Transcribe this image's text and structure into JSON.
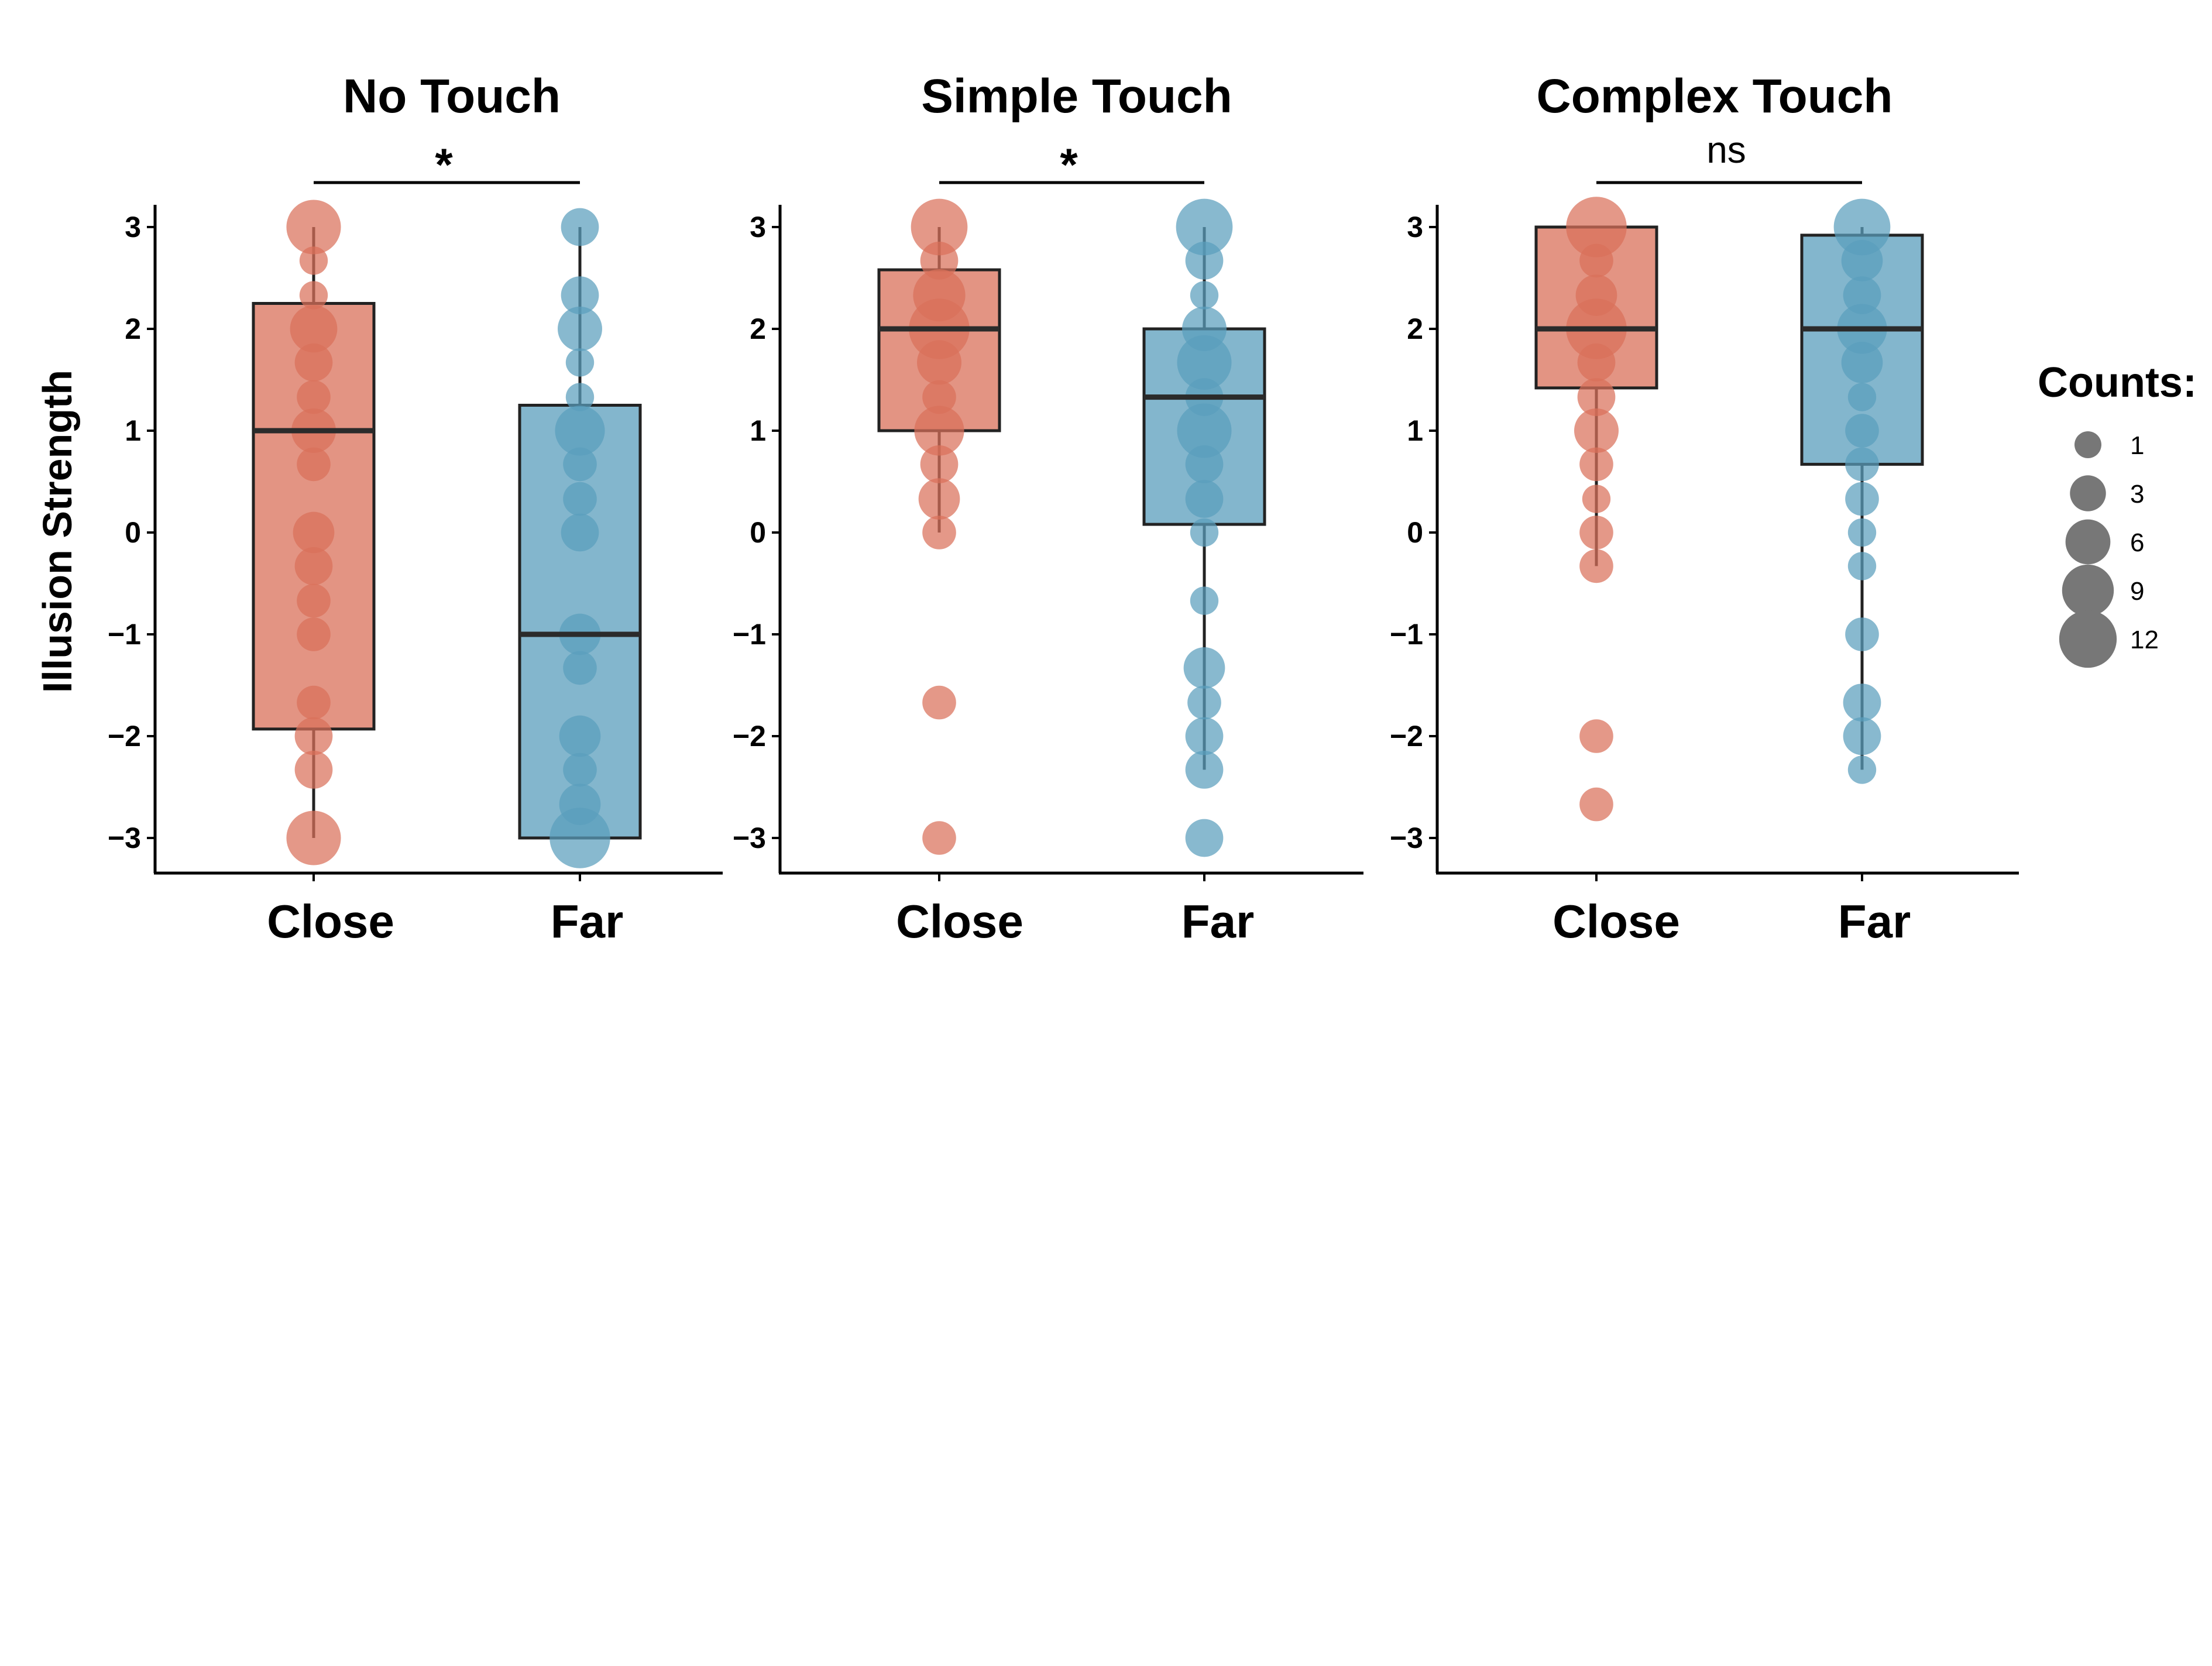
{
  "chart_data": {
    "type": "box",
    "ylabel": "Illusion Strength",
    "ylim": [
      -3,
      3
    ],
    "yticks": [
      "3",
      "2",
      "1",
      "0",
      "−1",
      "−2",
      "−3"
    ],
    "ytick_values": [
      3,
      2,
      1,
      0,
      -1,
      -2,
      -3
    ],
    "categories": [
      "Close",
      "Far"
    ],
    "colors": {
      "Close": "#D9705A",
      "Far": "#5A9EBC",
      "median": "#2b2b2b",
      "legend": "#777777"
    },
    "legend": {
      "title": "Counts:",
      "entries": [
        {
          "label": "1",
          "count": 1
        },
        {
          "label": "3",
          "count": 3
        },
        {
          "label": "6",
          "count": 6
        },
        {
          "label": "9",
          "count": 9
        },
        {
          "label": "12",
          "count": 12
        }
      ]
    },
    "panels": [
      {
        "title": "No Touch",
        "significance": "*",
        "groups": [
          {
            "name": "Close",
            "box": {
              "whisker_low": -3,
              "q1": -1.93,
              "median": 1,
              "q3": 2.25,
              "whisker_high": 3
            },
            "points": [
              {
                "y": 3,
                "count": 9
              },
              {
                "y": 2.67,
                "count": 1
              },
              {
                "y": 2.33,
                "count": 1
              },
              {
                "y": 2,
                "count": 6
              },
              {
                "y": 1.67,
                "count": 3
              },
              {
                "y": 1.33,
                "count": 2
              },
              {
                "y": 1,
                "count": 5
              },
              {
                "y": 0.67,
                "count": 2
              },
              {
                "y": 0,
                "count": 4
              },
              {
                "y": -0.33,
                "count": 3
              },
              {
                "y": -0.67,
                "count": 2
              },
              {
                "y": -1,
                "count": 2
              },
              {
                "y": -1.67,
                "count": 2
              },
              {
                "y": -2,
                "count": 3
              },
              {
                "y": -2.33,
                "count": 3
              },
              {
                "y": -3,
                "count": 9
              }
            ]
          },
          {
            "name": "Far",
            "box": {
              "whisker_low": -3,
              "q1": -3,
              "median": -1,
              "q3": 1.25,
              "whisker_high": 3
            },
            "points": [
              {
                "y": 3,
                "count": 3
              },
              {
                "y": 2.33,
                "count": 3
              },
              {
                "y": 2,
                "count": 5
              },
              {
                "y": 1.67,
                "count": 1
              },
              {
                "y": 1.33,
                "count": 1
              },
              {
                "y": 1,
                "count": 7
              },
              {
                "y": 0.67,
                "count": 2
              },
              {
                "y": 0.33,
                "count": 2
              },
              {
                "y": 0,
                "count": 3
              },
              {
                "y": -1,
                "count": 4
              },
              {
                "y": -1.33,
                "count": 2
              },
              {
                "y": -2,
                "count": 4
              },
              {
                "y": -2.33,
                "count": 2
              },
              {
                "y": -2.67,
                "count": 4
              },
              {
                "y": -3,
                "count": 12
              }
            ]
          }
        ]
      },
      {
        "title": "Simple Touch",
        "significance": "*",
        "groups": [
          {
            "name": "Close",
            "box": {
              "whisker_low": 0,
              "q1": 1,
              "median": 2,
              "q3": 2.58,
              "whisker_high": 3
            },
            "points": [
              {
                "y": 3,
                "count": 10
              },
              {
                "y": 2.67,
                "count": 3
              },
              {
                "y": 2.33,
                "count": 8
              },
              {
                "y": 2,
                "count": 12
              },
              {
                "y": 1.67,
                "count": 5
              },
              {
                "y": 1.33,
                "count": 2
              },
              {
                "y": 1,
                "count": 7
              },
              {
                "y": 0.67,
                "count": 3
              },
              {
                "y": 0.33,
                "count": 4
              },
              {
                "y": 0,
                "count": 2
              },
              {
                "y": -1.67,
                "count": 2
              },
              {
                "y": -3,
                "count": 2
              }
            ]
          },
          {
            "name": "Far",
            "box": {
              "whisker_low": -2.33,
              "q1": 0.08,
              "median": 1.33,
              "q3": 2,
              "whisker_high": 3
            },
            "points": [
              {
                "y": 3,
                "count": 10
              },
              {
                "y": 2.67,
                "count": 3
              },
              {
                "y": 2.33,
                "count": 1
              },
              {
                "y": 2,
                "count": 5
              },
              {
                "y": 1.67,
                "count": 9
              },
              {
                "y": 1.33,
                "count": 3
              },
              {
                "y": 1,
                "count": 9
              },
              {
                "y": 0.67,
                "count": 3
              },
              {
                "y": 0.33,
                "count": 3
              },
              {
                "y": 0,
                "count": 1
              },
              {
                "y": -0.67,
                "count": 1
              },
              {
                "y": -1.33,
                "count": 4
              },
              {
                "y": -1.67,
                "count": 2
              },
              {
                "y": -2,
                "count": 3
              },
              {
                "y": -2.33,
                "count": 3
              },
              {
                "y": -3,
                "count": 3
              }
            ]
          }
        ]
      },
      {
        "title": "Complex Touch",
        "significance": "ns",
        "groups": [
          {
            "name": "Close",
            "box": {
              "whisker_low": -0.33,
              "q1": 1.42,
              "median": 2,
              "q3": 3,
              "whisker_high": 3
            },
            "points": [
              {
                "y": 3,
                "count": 12
              },
              {
                "y": 2.67,
                "count": 2
              },
              {
                "y": 2.33,
                "count": 4
              },
              {
                "y": 2,
                "count": 12
              },
              {
                "y": 1.67,
                "count": 3
              },
              {
                "y": 1.33,
                "count": 3
              },
              {
                "y": 1,
                "count": 5
              },
              {
                "y": 0.67,
                "count": 2
              },
              {
                "y": 0.33,
                "count": 1
              },
              {
                "y": 0,
                "count": 2
              },
              {
                "y": -0.33,
                "count": 2
              },
              {
                "y": -2,
                "count": 2
              },
              {
                "y": -2.67,
                "count": 2
              }
            ]
          },
          {
            "name": "Far",
            "box": {
              "whisker_low": -2.33,
              "q1": 0.67,
              "median": 2,
              "q3": 2.92,
              "whisker_high": 3
            },
            "points": [
              {
                "y": 3,
                "count": 10
              },
              {
                "y": 2.67,
                "count": 4
              },
              {
                "y": 2.33,
                "count": 3
              },
              {
                "y": 2,
                "count": 7
              },
              {
                "y": 1.67,
                "count": 4
              },
              {
                "y": 1.33,
                "count": 1
              },
              {
                "y": 1,
                "count": 2
              },
              {
                "y": 0.67,
                "count": 2
              },
              {
                "y": 0.33,
                "count": 2
              },
              {
                "y": 0,
                "count": 1
              },
              {
                "y": -0.33,
                "count": 1
              },
              {
                "y": -1,
                "count": 2
              },
              {
                "y": -1.67,
                "count": 3
              },
              {
                "y": -2,
                "count": 3
              },
              {
                "y": -2.33,
                "count": 1
              }
            ]
          }
        ]
      }
    ]
  }
}
